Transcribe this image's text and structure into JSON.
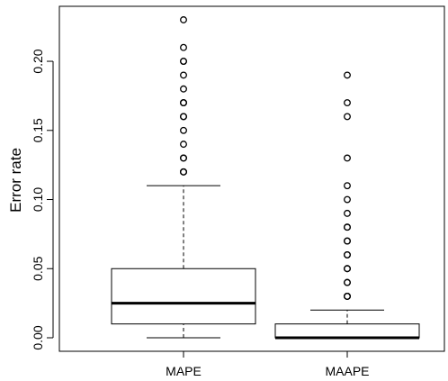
{
  "chart_data": {
    "type": "boxplot",
    "ylabel": "Error rate",
    "xlabel": "",
    "title": "",
    "ylim": [
      -0.008,
      0.236
    ],
    "yticks": [
      0.0,
      0.05,
      0.1,
      0.15,
      0.2
    ],
    "ytick_labels": [
      "0.00",
      "0.05",
      "0.10",
      "0.15",
      "0.20"
    ],
    "categories": [
      "MAPE",
      "MAAPE"
    ],
    "boxes": [
      {
        "name": "MAPE",
        "whisker_low": 0.0,
        "q1": 0.01,
        "median": 0.025,
        "q3": 0.05,
        "whisker_high": 0.11,
        "outliers": [
          0.12,
          0.12,
          0.12,
          0.13,
          0.13,
          0.14,
          0.15,
          0.16,
          0.16,
          0.17,
          0.17,
          0.17,
          0.18,
          0.19,
          0.2,
          0.2,
          0.21,
          0.23
        ]
      },
      {
        "name": "MAAPE",
        "whisker_low": 0.0,
        "q1": 0.0,
        "median": 0.0,
        "q3": 0.01,
        "whisker_high": 0.02,
        "outliers": [
          0.03,
          0.03,
          0.03,
          0.04,
          0.04,
          0.05,
          0.05,
          0.06,
          0.06,
          0.07,
          0.07,
          0.08,
          0.08,
          0.09,
          0.1,
          0.11,
          0.13,
          0.16,
          0.17,
          0.19
        ]
      }
    ],
    "grid": false,
    "legend": "none"
  }
}
